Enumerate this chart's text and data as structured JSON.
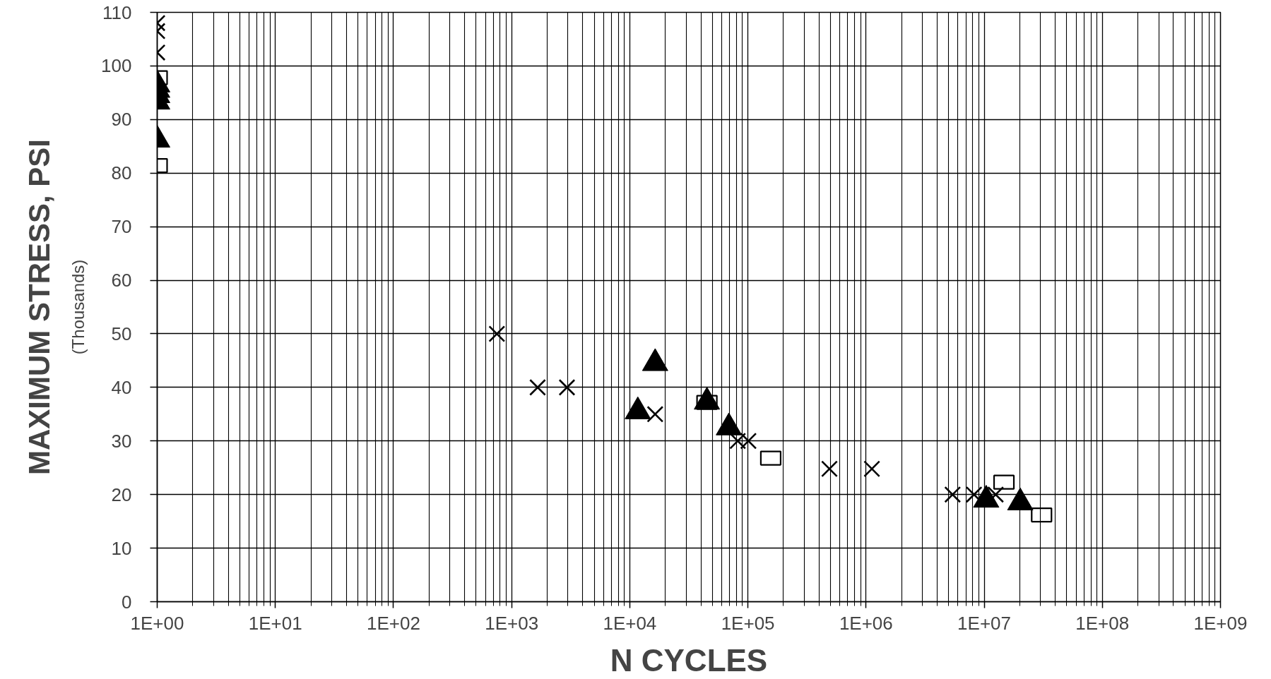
{
  "chart_data": {
    "type": "scatter",
    "xlabel": "N CYCLES",
    "ylabel": "MAXIMUM STRESS, PSI",
    "annotations": [
      "(Thousands)"
    ],
    "log": "x",
    "xlim": [
      1,
      1000000000
    ],
    "ylim": [
      0,
      110
    ],
    "xticks": [
      {
        "value": 1,
        "label": "1E+00"
      },
      {
        "value": 10,
        "label": "1E+01"
      },
      {
        "value": 100,
        "label": "1E+02"
      },
      {
        "value": 1000,
        "label": "1E+03"
      },
      {
        "value": 10000,
        "label": "1E+04"
      },
      {
        "value": 100000,
        "label": "1E+05"
      },
      {
        "value": 1000000,
        "label": "1E+06"
      },
      {
        "value": 10000000,
        "label": "1E+07"
      },
      {
        "value": 100000000,
        "label": "1E+08"
      },
      {
        "value": 1000000000,
        "label": "1E+09"
      }
    ],
    "yticks": [
      0,
      10,
      20,
      30,
      40,
      50,
      60,
      70,
      80,
      90,
      100,
      110
    ],
    "grid": true,
    "series": [
      {
        "color": "#000000",
        "marker": "cross",
        "x": [
          1,
          1,
          1,
          750,
          1660,
          2940,
          16400,
          82000,
          101000,
          490000,
          1120000,
          5400000,
          8200000,
          12500000
        ],
        "values": [
          108,
          106.5,
          102.5,
          50,
          40,
          40,
          35,
          30,
          30,
          24.8,
          24.8,
          20,
          20,
          20
        ]
      },
      {
        "color": "#000000",
        "marker": "square",
        "x": [
          1,
          1,
          45000,
          156000,
          14700000,
          30600000
        ],
        "values": [
          97.8,
          81.4,
          37.2,
          26.8,
          22.3,
          16.2
        ]
      },
      {
        "color": "#000000",
        "marker": "triangle",
        "x": [
          1,
          1,
          1,
          1,
          1,
          11700,
          16400,
          45000,
          69000,
          10400000,
          20200000
        ],
        "values": [
          96.5,
          95.5,
          94.5,
          93.3,
          86.2,
          35.5,
          44.5,
          37.3,
          32.5,
          19,
          18.5
        ]
      }
    ]
  }
}
